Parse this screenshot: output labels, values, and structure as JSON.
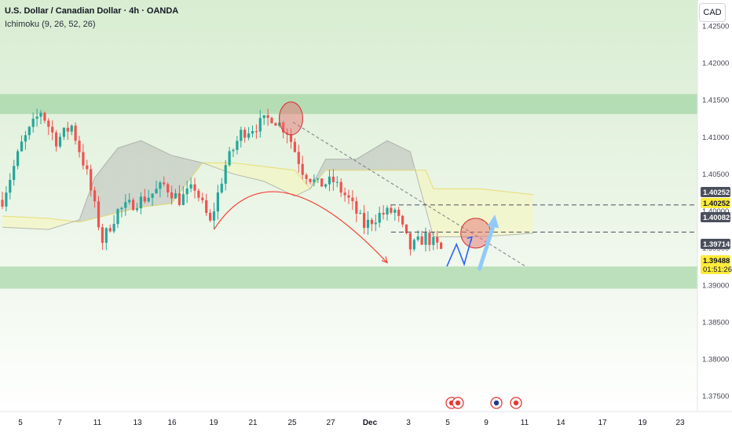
{
  "header": {
    "title": "U.S. Dollar / Canadian Dollar · 4h · OANDA",
    "indicator": "Ichimoku (9, 26, 52, 26)"
  },
  "currency_label": "CAD",
  "colors": {
    "bull": "#26a69a",
    "bear": "#ef5350",
    "zone": "#a5d6a7",
    "cloud_gray": "#9e9e9e",
    "cloud_yellow": "#fff59d",
    "forecast_blue": "#2962ff",
    "arrow_blue": "#90caf9",
    "circle_red": "#e57373"
  },
  "chart_data": {
    "type": "candlestick",
    "symbol": "USDCAD",
    "timeframe": "4h",
    "ylim": [
      1.373,
      1.4285
    ],
    "y_ticks": [
      "1.42500",
      "1.42000",
      "1.41500",
      "1.41000",
      "1.40500",
      "1.40000",
      "1.39500",
      "1.39000",
      "1.38500",
      "1.38000",
      "1.37500"
    ],
    "x_ticks": [
      "5",
      "7",
      "11",
      "13",
      "16",
      "19",
      "21",
      "25",
      "27",
      "Dec",
      "3",
      "5",
      "9",
      "11",
      "14",
      "17",
      "19",
      "23"
    ],
    "price_labels": [
      {
        "text": "1.40252",
        "style": "dark"
      },
      {
        "text": "1.40252",
        "style": "yellow"
      },
      {
        "text": "1.40082",
        "style": "dark"
      },
      {
        "text": "1.39714",
        "style": "dark"
      },
      {
        "text": "1.39488",
        "style": "yellow",
        "subtext": "01:51:26"
      }
    ],
    "resistance_zone": [
      1.4131,
      1.4158
    ],
    "support_zone": [
      1.3895,
      1.3925
    ],
    "horizontal_levels": [
      1.40082,
      1.39714
    ],
    "candle_path": [
      [
        0,
        1.4015
      ],
      [
        5,
        1.409
      ],
      [
        10,
        1.4135
      ],
      [
        14,
        1.4095
      ],
      [
        18,
        1.4115
      ],
      [
        22,
        1.405
      ],
      [
        26,
        1.396
      ],
      [
        30,
        1.4
      ],
      [
        34,
        1.401
      ],
      [
        38,
        1.402
      ],
      [
        42,
        1.4035
      ],
      [
        46,
        1.4015
      ],
      [
        50,
        1.4032
      ],
      [
        54,
        1.3983
      ],
      [
        58,
        1.4062
      ],
      [
        62,
        1.4105
      ],
      [
        66,
        1.4115
      ],
      [
        70,
        1.4127
      ],
      [
        74,
        1.4108
      ],
      [
        78,
        1.4055
      ],
      [
        82,
        1.4035
      ],
      [
        86,
        1.404
      ],
      [
        90,
        1.4015
      ],
      [
        94,
        1.398
      ],
      [
        98,
        1.3995
      ],
      [
        102,
        1.4
      ],
      [
        106,
        1.395
      ],
      [
        110,
        1.3965
      ],
      [
        114,
        1.3948
      ]
    ],
    "last_close": 1.39488,
    "cloud_span_a": [
      [
        0,
        1.3993
      ],
      [
        12,
        1.399
      ],
      [
        20,
        1.3985
      ],
      [
        28,
        1.3995
      ],
      [
        36,
        1.4005
      ],
      [
        44,
        1.401
      ],
      [
        52,
        1.4065
      ],
      [
        60,
        1.4065
      ],
      [
        68,
        1.406
      ],
      [
        76,
        1.4055
      ],
      [
        80,
        1.403
      ],
      [
        84,
        1.4055
      ],
      [
        92,
        1.4055
      ],
      [
        100,
        1.4055
      ],
      [
        110,
        1.4055
      ],
      [
        112,
        1.403
      ],
      [
        124,
        1.403
      ],
      [
        138,
        1.4022
      ]
    ],
    "cloud_span_b": [
      [
        0,
        1.3978
      ],
      [
        12,
        1.3975
      ],
      [
        20,
        1.3988
      ],
      [
        24,
        1.4045
      ],
      [
        30,
        1.4085
      ],
      [
        36,
        1.4095
      ],
      [
        44,
        1.4075
      ],
      [
        52,
        1.4065
      ],
      [
        60,
        1.405
      ],
      [
        68,
        1.404
      ],
      [
        76,
        1.402
      ],
      [
        80,
        1.403
      ],
      [
        84,
        1.407
      ],
      [
        92,
        1.407
      ],
      [
        100,
        1.4095
      ],
      [
        106,
        1.408
      ],
      [
        112,
        1.3965
      ],
      [
        124,
        1.3965
      ],
      [
        138,
        1.397
      ]
    ],
    "projection_end_index": 138,
    "annotations": {
      "trendline": [
        [
          75.5,
          1.412
        ],
        [
          136,
          1.3925
        ]
      ],
      "arc": [
        [
          55,
          1.3975
        ],
        [
          70,
          1.4045
        ],
        [
          100,
          1.393
        ]
      ],
      "circle_top": [
        75,
        1.4125
      ],
      "circle_target": [
        123,
        1.397
      ],
      "zigzag": [
        [
          115.5,
          1.3925
        ],
        [
          118,
          1.3955
        ],
        [
          120,
          1.3928
        ],
        [
          122,
          1.3965
        ]
      ],
      "arrow": [
        [
          124,
          1.3922
        ],
        [
          128,
          1.3995
        ]
      ]
    }
  }
}
